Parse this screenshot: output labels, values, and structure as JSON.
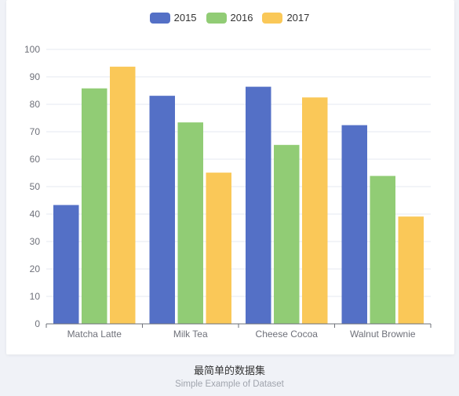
{
  "chart_data": {
    "type": "bar",
    "categories": [
      "Matcha Latte",
      "Milk Tea",
      "Cheese Cocoa",
      "Walnut Brownie"
    ],
    "series": [
      {
        "name": "2015",
        "color": "#5470c6",
        "values": [
          43.3,
          83.1,
          86.4,
          72.4
        ]
      },
      {
        "name": "2016",
        "color": "#91cc75",
        "values": [
          85.8,
          73.4,
          65.2,
          53.9
        ]
      },
      {
        "name": "2017",
        "color": "#fac858",
        "values": [
          93.7,
          55.1,
          82.5,
          39.1
        ]
      }
    ],
    "ylim": [
      0,
      100
    ],
    "yticks": [
      0,
      10,
      20,
      30,
      40,
      50,
      60,
      70,
      80,
      90,
      100
    ],
    "grid": true,
    "legend": "top-center"
  },
  "caption": {
    "title": "最简单的数据集",
    "subtitle": "Simple Example of Dataset"
  }
}
